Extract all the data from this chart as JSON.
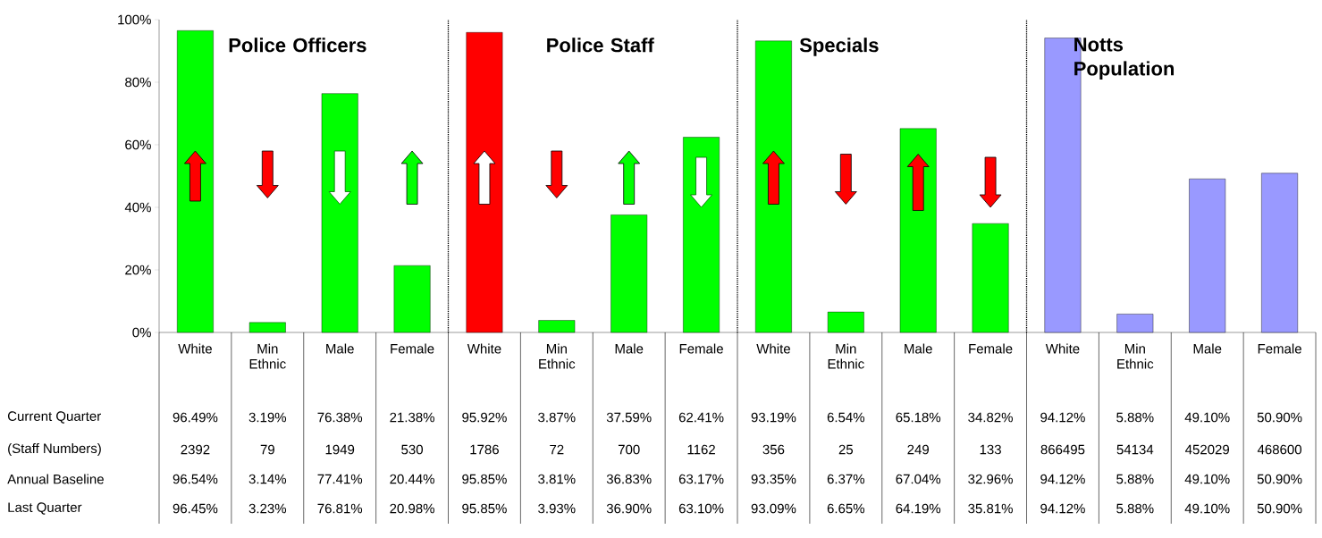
{
  "chart_data": {
    "type": "bar",
    "categories": [
      "White",
      "Min Ethnic",
      "Male",
      "Female",
      "White",
      "Min Ethnic",
      "Male",
      "Female",
      "White",
      "Min Ethnic",
      "Male",
      "Female",
      "White",
      "Min Ethnic",
      "Male",
      "Female"
    ],
    "series": [
      {
        "name": "Current Quarter",
        "values": [
          96.49,
          3.19,
          76.38,
          21.38,
          95.92,
          3.87,
          37.59,
          62.41,
          93.19,
          6.54,
          65.18,
          34.82,
          94.12,
          5.88,
          49.1,
          50.9
        ],
        "colors": [
          "#00ff00",
          "#00ff00",
          "#00ff00",
          "#00ff00",
          "#ff0000",
          "#00ff00",
          "#00ff00",
          "#00ff00",
          "#00ff00",
          "#00ff00",
          "#00ff00",
          "#00ff00",
          "#9999ff",
          "#9999ff",
          "#9999ff",
          "#9999ff"
        ],
        "value_labels": [
          "96.49%",
          "3.19%",
          "76.38%",
          "21.38%",
          "95.92%",
          "3.87%",
          "37.59%",
          "62.41%",
          "93.19%",
          "6.54%",
          "65.18%",
          "34.82%",
          "94.12%",
          "5.88%",
          "49.10%",
          "50.90%"
        ]
      }
    ],
    "ylim": [
      0,
      100
    ],
    "yticks": [
      {
        "value": 0,
        "label": "0%"
      },
      {
        "value": 20,
        "label": "20%"
      },
      {
        "value": 40,
        "label": "40%"
      },
      {
        "value": 60,
        "label": "60%"
      },
      {
        "value": 80,
        "label": "80%"
      },
      {
        "value": 100,
        "label": "100%"
      }
    ],
    "grid": false,
    "annotations": [
      "Police Officers",
      "Police Staff",
      "Specials",
      "Notts Population",
      "(Staff Numbers)",
      "2392",
      "79",
      "1949",
      "530",
      "1786",
      "72",
      "700",
      "1162",
      "356",
      "25",
      "249",
      "133",
      "866495",
      "54134",
      "452029",
      "468600",
      "Annual Baseline",
      "96.54%",
      "3.14%",
      "77.41%",
      "20.44%",
      "95.85%",
      "3.81%",
      "36.83%",
      "63.17%",
      "93.35%",
      "6.37%",
      "67.04%",
      "32.96%",
      "94.12%",
      "5.88%",
      "49.10%",
      "50.90%",
      "Last Quarter",
      "96.45%",
      "3.23%",
      "76.81%",
      "20.98%",
      "95.85%",
      "3.93%",
      "36.90%",
      "63.10%",
      "93.09%",
      "6.65%",
      "64.19%",
      "35.81%",
      "94.12%",
      "5.88%",
      "49.10%",
      "50.90%"
    ]
  }
}
